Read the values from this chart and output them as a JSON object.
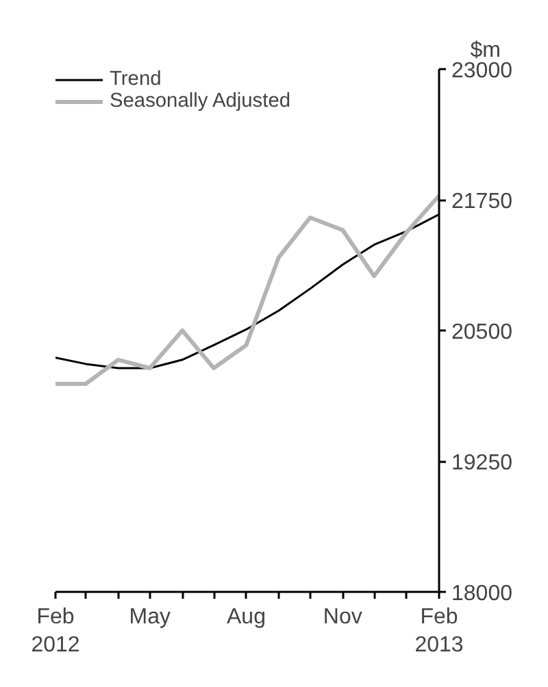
{
  "chart_data": {
    "type": "line",
    "ylabel": "$m",
    "x": [
      "2012-02",
      "2012-03",
      "2012-04",
      "2012-05",
      "2012-06",
      "2012-07",
      "2012-08",
      "2012-09",
      "2012-10",
      "2012-11",
      "2012-12",
      "2013-01",
      "2013-02"
    ],
    "series": [
      {
        "name": "Trend",
        "color": "#000000",
        "values": [
          20240,
          20180,
          20140,
          20140,
          20220,
          20360,
          20510,
          20690,
          20900,
          21130,
          21320,
          21450,
          21610
        ]
      },
      {
        "name": "Seasonally Adjusted",
        "color": "#b4b4b4",
        "values": [
          19990,
          19990,
          20220,
          20140,
          20500,
          20140,
          20360,
          21200,
          21580,
          21460,
          21020,
          21440,
          21790
        ]
      }
    ],
    "xlim": [
      "2012-02",
      "2013-02"
    ],
    "xticks": [
      {
        "value": "2012-02",
        "label": "Feb\n2012"
      },
      {
        "value": "2012-03",
        "label": null
      },
      {
        "value": "2012-04",
        "label": null
      },
      {
        "value": "2012-05",
        "label": "May"
      },
      {
        "value": "2012-06",
        "label": null
      },
      {
        "value": "2012-07",
        "label": null
      },
      {
        "value": "2012-08",
        "label": "Aug"
      },
      {
        "value": "2012-09",
        "label": null
      },
      {
        "value": "2012-10",
        "label": null
      },
      {
        "value": "2012-11",
        "label": "Nov"
      },
      {
        "value": "2012-12",
        "label": null
      },
      {
        "value": "2013-01",
        "label": null
      },
      {
        "value": "2013-02",
        "label": "Feb\n2013"
      }
    ],
    "ylim": [
      18000,
      23000
    ],
    "yticks": [
      18000,
      19250,
      20500,
      21750,
      23000
    ],
    "grid": false,
    "legend": "top left",
    "marker": "none",
    "line_style": "solid"
  }
}
